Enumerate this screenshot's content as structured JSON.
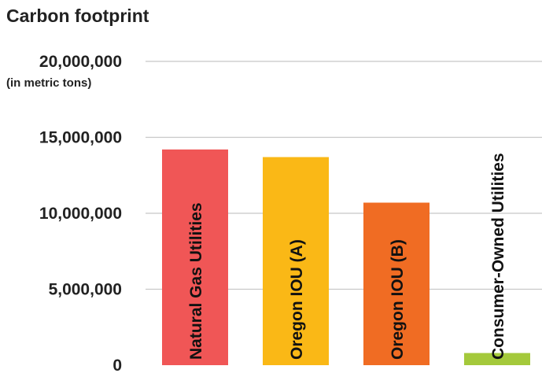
{
  "chart_data": {
    "type": "bar",
    "title": "Carbon footprint",
    "ylabel": "(in metric tons)",
    "ylim": [
      0,
      20000000
    ],
    "yticks": [
      0,
      5000000,
      10000000,
      15000000,
      20000000
    ],
    "ytick_labels": [
      "0",
      "5,000,000",
      "10,000,000",
      "15,000,000",
      "20,000,000"
    ],
    "grid": true,
    "categories": [
      "Natural Gas Utilities",
      "Oregon IOU (A)",
      "Oregon IOU (B)",
      "Consumer-Owned Utilities"
    ],
    "values": [
      14200000,
      13700000,
      10700000,
      800000
    ],
    "colors": [
      "#F05656",
      "#FAB816",
      "#F06C23",
      "#A4C93B"
    ]
  }
}
